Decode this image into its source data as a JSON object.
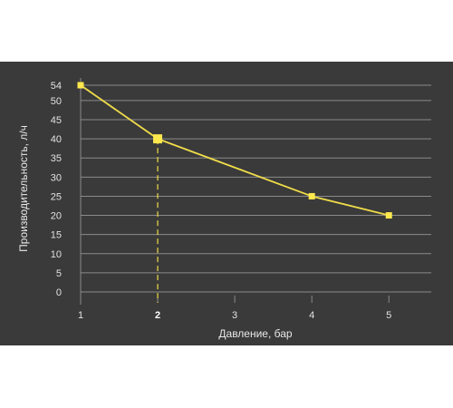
{
  "colors": {
    "background": "#3a3a3a",
    "grid": "#8a8a8a",
    "line": "#f0dc4a",
    "marker": "#ffe84d",
    "text": "#e3e3e3"
  },
  "chart_data": {
    "type": "line",
    "title": "",
    "xlabel": "Давление, бар",
    "ylabel": "Производительность, л/ч",
    "x": [
      1,
      2,
      4,
      5
    ],
    "series": [
      {
        "values": [
          54,
          40,
          25,
          20
        ]
      }
    ],
    "xticks": [
      "1",
      "2",
      "3",
      "4",
      "5"
    ],
    "xtick_values": [
      1,
      2,
      3,
      4,
      5
    ],
    "yticks": [
      "0",
      "5",
      "10",
      "15",
      "20",
      "25",
      "30",
      "35",
      "40",
      "45",
      "50",
      "54"
    ],
    "ytick_values": [
      0,
      5,
      10,
      15,
      20,
      25,
      30,
      35,
      40,
      45,
      50,
      54
    ],
    "highlight": {
      "x": 2,
      "y": 40,
      "xtick_bold": "2",
      "dropline": "dashed"
    },
    "xlim": [
      1,
      5.55
    ],
    "ylim": [
      0,
      54
    ],
    "grid": "horizontal",
    "legend": "none"
  }
}
